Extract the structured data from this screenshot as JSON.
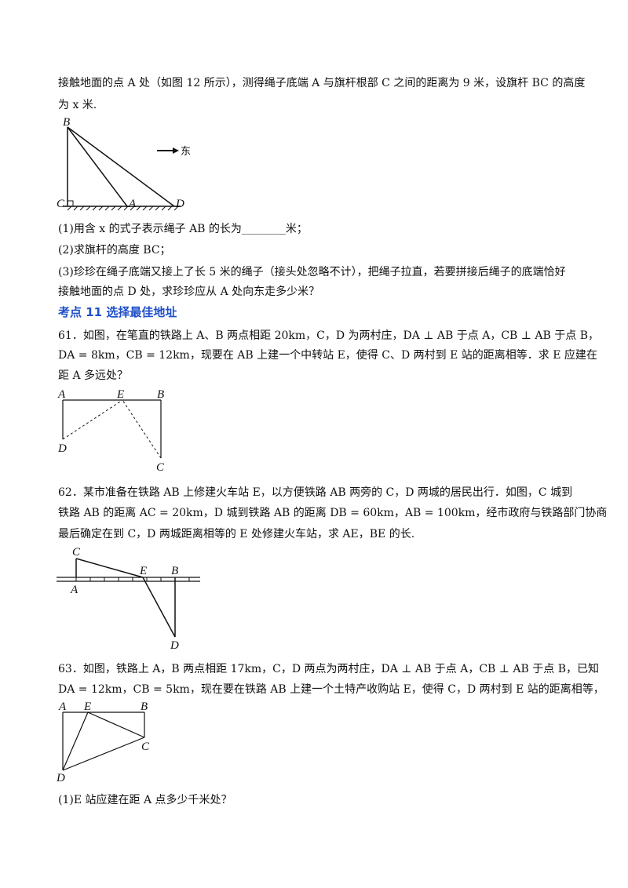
{
  "intro": {
    "line1": "接触地面的点 A 处（如图 12 所示），测得绳子底端 A 与旗杆根部 C 之间的距离为 9 米，设旗杆 BC 的高度",
    "line2": "为 x 米."
  },
  "fig12": {
    "labels": [
      "B",
      "C",
      "A",
      "D"
    ],
    "arrow_label": "东"
  },
  "q_part1": "(1)用含 x 的式子表示绳子 AB 的长为________米；",
  "q_part2": "(2)求旗杆的高度 BC；",
  "q_part3_line1": "(3)珍珍在绳子底端又接上了长 5 米的绳子（接头处忽略不计），把绳子拉直，若要拼接后绳子的底端恰好",
  "q_part3_line2": "接触地面的点 D 处，求珍珍应从 A 处向东走多少米？",
  "section_heading": "考点 11  选择最佳地址",
  "p61": {
    "line1": "61．如图，在笔直的铁路上 A、B 两点相距 20km，C，D 为两村庄，DA ⊥ AB 于点 A，CB ⊥ AB 于点 B，",
    "line2": "DA = 8km，CB = 12km，现要在 AB 上建一个中转站 E，使得 C、D 两村到 E 站的距离相等．求 E 应建在",
    "line3": "距 A 多远处？",
    "fig_labels": [
      "A",
      "E",
      "B",
      "D",
      "C"
    ]
  },
  "p62": {
    "line1": "62．某市准备在铁路 AB 上修建火车站 E，以方便铁路 AB 两旁的 C，D 两城的居民出行．如图，C 城到",
    "line2": "铁路 AB 的距离 AC = 20km，D 城到铁路 AB 的距离 DB = 60km，AB = 100km，经市政府与铁路部门协商",
    "line3": "最后确定在到 C，D 两城距离相等的 E 处修建火车站，求 AE，BE 的长.",
    "fig_labels": [
      "C",
      "E",
      "B",
      "A",
      "D"
    ]
  },
  "p63": {
    "line1": "63．如图，铁路上 A，B 两点相距 17km，C，D 两点为两村庄，DA ⊥ AB 于点 A，CB ⊥ AB 于点 B，已知",
    "line2": "DA = 12km，CB = 5km，现在要在铁路 AB 上建一个土特产收购站 E，使得 C，D 两村到 E 站的距离相等，",
    "fig_labels": [
      "A",
      "E",
      "B",
      "C",
      "D"
    ],
    "sub1": "(1)E 站应建在距 A 点多少千米处？"
  }
}
